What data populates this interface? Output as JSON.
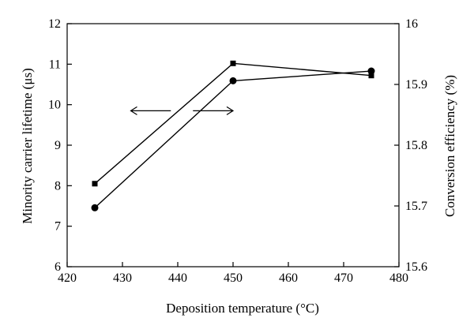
{
  "chart_data": {
    "type": "line",
    "xlabel": "Deposition temperature (°C)",
    "ylabel_left": "Minority carrier lifetime (μs)",
    "ylabel_right": "Conversion efficiency (%)",
    "xlim": [
      420,
      480
    ],
    "ylim_left": [
      6,
      12
    ],
    "ylim_right": [
      15.6,
      16.0
    ],
    "x_ticks": [
      "420",
      "430",
      "440",
      "450",
      "460",
      "470",
      "480"
    ],
    "y_left_ticks": [
      "6",
      "7",
      "8",
      "9",
      "10",
      "11",
      "12"
    ],
    "y_right_ticks": [
      "15.6",
      "15.7",
      "15.8",
      "15.9",
      "16"
    ],
    "grid": false,
    "series": [
      {
        "axis": "left",
        "marker": "square",
        "x": [
          425,
          450,
          475
        ],
        "y": [
          8.05,
          11.02,
          10.72
        ]
      },
      {
        "axis": "right",
        "marker": "circle",
        "x": [
          425,
          450,
          475
        ],
        "y": [
          15.697,
          15.906,
          15.922
        ]
      }
    ],
    "annotation": "double-headed arrow pointing to left and right axes",
    "annotation_x_range": [
      431.5,
      450
    ]
  }
}
